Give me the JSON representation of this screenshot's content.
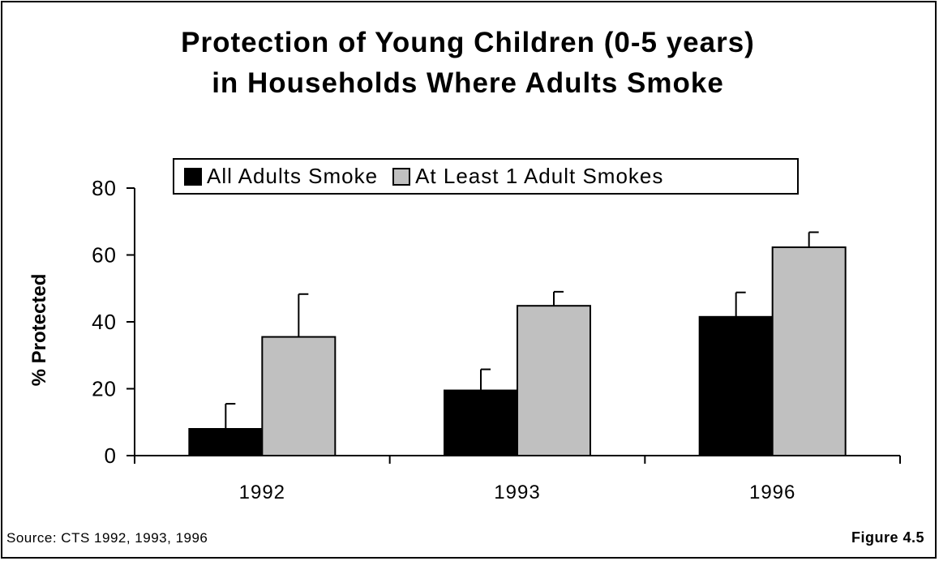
{
  "chart_data": {
    "type": "bar",
    "title_lines": [
      "Protection of Young Children (0-5 years)",
      "in Households Where Adults Smoke"
    ],
    "xlabel": "",
    "ylabel": "% Protected",
    "ylim": [
      0,
      80
    ],
    "yticks": [
      "0",
      "20",
      "40",
      "60",
      "80"
    ],
    "categories": [
      "1992",
      "1993",
      "1996"
    ],
    "series": [
      {
        "name": "All Adults Smoke",
        "color": "#000000",
        "values": [
          8,
          19.5,
          41.5
        ],
        "error_upper": [
          15.5,
          25.8,
          48.8
        ]
      },
      {
        "name": "At Least 1 Adult Smokes",
        "color": "#c0c0c0",
        "values": [
          35.5,
          44.8,
          62.3
        ],
        "error_upper": [
          48.3,
          49,
          66.8
        ]
      }
    ],
    "grid": false,
    "legend_placement": "top-center"
  },
  "source": "Source:  CTS 1992, 1993, 1996",
  "figure_label": "Figure 4.5"
}
